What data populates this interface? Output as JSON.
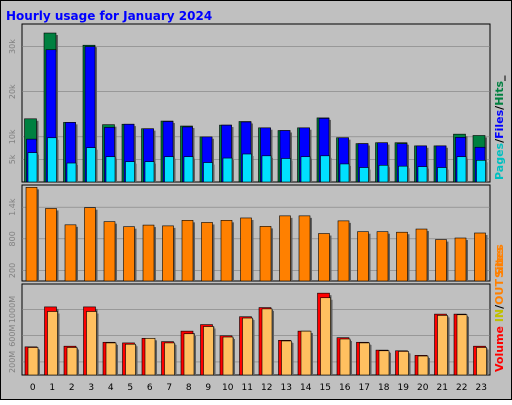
{
  "chart_data": {
    "type": "bar",
    "title": "Hourly usage for January 2024",
    "categories": [
      "0",
      "1",
      "2",
      "3",
      "4",
      "5",
      "6",
      "7",
      "8",
      "9",
      "10",
      "11",
      "12",
      "13",
      "14",
      "15",
      "16",
      "17",
      "18",
      "19",
      "20",
      "21",
      "22",
      "23"
    ],
    "colors": {
      "background": "#c0c0c0",
      "plot_background": "#c0c0c0",
      "title": "#0000ff",
      "pages": "#00e0ff",
      "files": "#0000ff",
      "hits": "#008040",
      "sites": "#ff8000",
      "volume": "#ff0000",
      "volume_in": "#ff8000",
      "volume_out": "#ffc060"
    },
    "panels": [
      {
        "id": "usage",
        "ylim": [
          0,
          35000
        ],
        "yticks": [
          5000,
          10000,
          20000,
          30000
        ],
        "ytick_labels": [
          "5k",
          "10k",
          "20k",
          "30k"
        ],
        "legend": [
          {
            "text": "Pages",
            "color": "#00c0c0"
          },
          {
            "text": "/",
            "color": "#000000"
          },
          {
            "text": "Files",
            "color": "#0000ff"
          },
          {
            "text": "/",
            "color": "#000000"
          },
          {
            "text": "Hits",
            "color": "#008040"
          },
          {
            "text": "_",
            "color": "#000000"
          }
        ],
        "series": [
          {
            "name": "Hits",
            "values": [
              14000,
              33000,
              13200,
              30300,
              12700,
              12800,
              11800,
              13500,
              12400,
              10000,
              12600,
              13400,
              12000,
              11400,
              12000,
              14200,
              9800,
              8500,
              8700,
              8700,
              8000,
              8000,
              10600,
              10300
            ]
          },
          {
            "name": "Files",
            "values": [
              9500,
              29300,
              13200,
              30000,
              12100,
              12800,
              11800,
              13400,
              12200,
              10000,
              12600,
              13300,
              12000,
              11400,
              12000,
              14100,
              9800,
              8500,
              8700,
              8500,
              8000,
              8000,
              9900,
              7700
            ]
          },
          {
            "name": "Pages",
            "values": [
              6500,
              9800,
              4200,
              7600,
              5600,
              4500,
              4500,
              5600,
              5600,
              4300,
              5300,
              6200,
              5800,
              5200,
              5600,
              5800,
              4000,
              3200,
              3700,
              3500,
              3400,
              3200,
              5600,
              4800
            ]
          }
        ]
      },
      {
        "id": "sites",
        "ylim": [
          0,
          1820
        ],
        "yticks": [
          200,
          800,
          1400
        ],
        "ytick_labels": [
          "200",
          "800",
          "1.4k"
        ],
        "legend": [
          {
            "text": "Sites",
            "color": "#ff8000"
          }
        ],
        "series": [
          {
            "name": "Sites",
            "values": [
              1775,
              1375,
              1065,
              1390,
              1125,
              1030,
              1060,
              1045,
              1150,
              1110,
              1150,
              1195,
              1035,
              1235,
              1235,
              900,
              1140,
              935,
              935,
              925,
              985,
              785,
              815,
              910
            ]
          }
        ]
      },
      {
        "id": "volume",
        "ylim": [
          0,
          1390
        ],
        "yticks": [
          200,
          600,
          1000
        ],
        "ytick_labels": [
          "200M",
          "600M",
          "1000M"
        ],
        "legend": [
          {
            "text": "Volume",
            "color": "#ff0000"
          },
          {
            "text": " ",
            "color": "#000000"
          },
          {
            "text": "IN",
            "color": "#c0c000"
          },
          {
            "text": "/",
            "color": "#000000"
          },
          {
            "text": "OUT",
            "color": "#ff8000"
          },
          {
            "text": " ",
            "color": "#000000"
          },
          {
            "text": "Sites",
            "color": "#ff8000"
          }
        ],
        "series": [
          {
            "name": "Volume",
            "values": [
              430,
              1040,
              440,
              1040,
              500,
              490,
              560,
              510,
              670,
              770,
              600,
              890,
              1030,
              530,
              670,
              1250,
              570,
              500,
              380,
              370,
              300,
              930,
              930,
              440
            ]
          },
          {
            "name": "OUT",
            "values": [
              420,
              970,
              420,
              970,
              490,
              470,
              560,
              490,
              630,
              740,
              580,
              870,
              1010,
              520,
              670,
              1180,
              550,
              490,
              370,
              360,
              290,
              910,
              920,
              420
            ]
          }
        ]
      }
    ]
  }
}
